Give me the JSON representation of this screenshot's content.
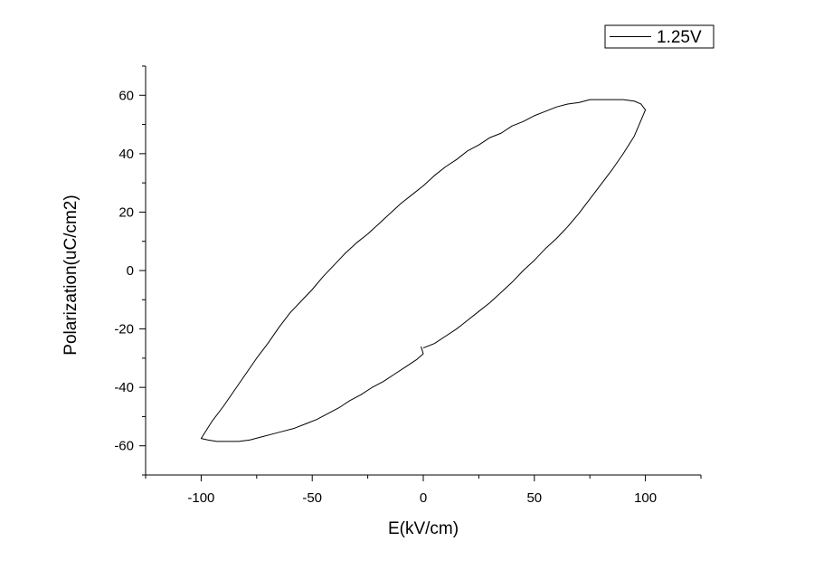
{
  "chart_data": {
    "type": "line",
    "title": "",
    "xlabel": "E(kV/cm)",
    "ylabel": "Polarization(uC/cm2)",
    "xlim": [
      -125,
      125
    ],
    "ylim": [
      -70,
      70
    ],
    "x_ticks": [
      -100,
      -50,
      0,
      50,
      100
    ],
    "y_ticks": [
      -60,
      -40,
      -20,
      0,
      20,
      40,
      60
    ],
    "grid": false,
    "legend_position": "top-right",
    "series": [
      {
        "name": "1.25V",
        "color": "#000000",
        "points": [
          [
            0,
            -26.5
          ],
          [
            5,
            -25.0
          ],
          [
            10,
            -22.5
          ],
          [
            15,
            -20.0
          ],
          [
            20,
            -17.0
          ],
          [
            25,
            -14.0
          ],
          [
            30,
            -11.0
          ],
          [
            35,
            -7.5
          ],
          [
            40,
            -4.0
          ],
          [
            45,
            0.0
          ],
          [
            50,
            3.5
          ],
          [
            55,
            7.5
          ],
          [
            60,
            11.0
          ],
          [
            65,
            15.0
          ],
          [
            70,
            19.5
          ],
          [
            75,
            24.5
          ],
          [
            80,
            29.5
          ],
          [
            85,
            34.5
          ],
          [
            90,
            40.0
          ],
          [
            95,
            46.0
          ],
          [
            100,
            55.0
          ],
          [
            98,
            57.0
          ],
          [
            95,
            58.0
          ],
          [
            90,
            58.5
          ],
          [
            85,
            58.5
          ],
          [
            80,
            58.5
          ],
          [
            75,
            58.5
          ],
          [
            70,
            57.5
          ],
          [
            65,
            57.0
          ],
          [
            60,
            56.0
          ],
          [
            55,
            54.5
          ],
          [
            50,
            53.0
          ],
          [
            45,
            51.0
          ],
          [
            40,
            49.5
          ],
          [
            35,
            47.0
          ],
          [
            30,
            45.5
          ],
          [
            25,
            43.0
          ],
          [
            20,
            41.0
          ],
          [
            15,
            38.0
          ],
          [
            10,
            35.5
          ],
          [
            5,
            32.5
          ],
          [
            0,
            29.0
          ],
          [
            -5,
            26.0
          ],
          [
            -10,
            23.0
          ],
          [
            -15,
            19.5
          ],
          [
            -20,
            16.0
          ],
          [
            -25,
            12.5
          ],
          [
            -30,
            9.5
          ],
          [
            -35,
            6.0
          ],
          [
            -40,
            2.0
          ],
          [
            -45,
            -2.0
          ],
          [
            -50,
            -6.5
          ],
          [
            -55,
            -10.5
          ],
          [
            -60,
            -14.5
          ],
          [
            -65,
            -19.5
          ],
          [
            -70,
            -25.0
          ],
          [
            -75,
            -30.0
          ],
          [
            -80,
            -35.5
          ],
          [
            -85,
            -41.0
          ],
          [
            -90,
            -46.5
          ],
          [
            -95,
            -51.5
          ],
          [
            -100,
            -57.5
          ],
          [
            -97,
            -58.0
          ],
          [
            -93,
            -58.5
          ],
          [
            -88,
            -58.5
          ],
          [
            -83,
            -58.5
          ],
          [
            -78,
            -58.0
          ],
          [
            -73,
            -57.0
          ],
          [
            -68,
            -56.0
          ],
          [
            -63,
            -55.0
          ],
          [
            -58,
            -54.0
          ],
          [
            -53,
            -52.5
          ],
          [
            -48,
            -51.0
          ],
          [
            -43,
            -49.0
          ],
          [
            -38,
            -47.0
          ],
          [
            -33,
            -44.5
          ],
          [
            -28,
            -42.5
          ],
          [
            -23,
            -40.0
          ],
          [
            -18,
            -38.0
          ],
          [
            -13,
            -35.5
          ],
          [
            -8,
            -33.0
          ],
          [
            -3,
            -30.5
          ],
          [
            0,
            -28.5
          ],
          [
            -1,
            -26.0
          ]
        ]
      }
    ]
  }
}
